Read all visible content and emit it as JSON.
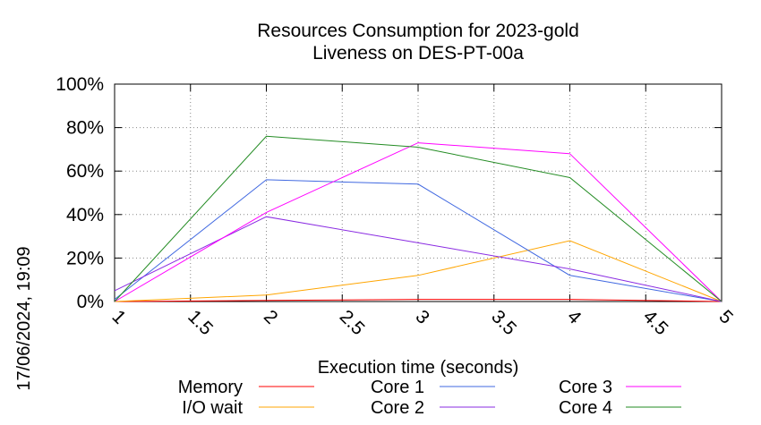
{
  "chart_data": {
    "type": "line",
    "title": [
      "Resources Consumption for 2023-gold",
      "Liveness on DES-PT-00a"
    ],
    "xlabel": "Execution time (seconds)",
    "ylabel": "",
    "side_label": "17/06/2024, 19:09",
    "xlim": [
      1,
      5
    ],
    "ylim": [
      0,
      100
    ],
    "x_ticks": [
      1,
      1.5,
      2,
      2.5,
      3,
      3.5,
      4,
      4.5,
      5
    ],
    "x_tick_labels": [
      "1",
      "1.5",
      "2",
      "2.5",
      "3",
      "3.5",
      "4",
      "4.5",
      "5"
    ],
    "y_ticks": [
      0,
      20,
      40,
      60,
      80,
      100
    ],
    "y_tick_labels": [
      "0%",
      "20%",
      "40%",
      "60%",
      "80%",
      "100%"
    ],
    "grid": true,
    "legend_position": "bottom",
    "series": [
      {
        "name": "Memory",
        "color": "#ff0000",
        "x": [
          1,
          2,
          3,
          4,
          5
        ],
        "y": [
          0,
          0.5,
          1,
          1,
          0
        ]
      },
      {
        "name": "I/O wait",
        "color": "#ffa500",
        "x": [
          1,
          2,
          3,
          4,
          5
        ],
        "y": [
          0,
          3,
          12,
          28,
          0
        ]
      },
      {
        "name": "Core 1",
        "color": "#4169e1",
        "x": [
          1,
          2,
          3,
          4,
          5
        ],
        "y": [
          1,
          56,
          54,
          12,
          0
        ]
      },
      {
        "name": "Core 2",
        "color": "#8a2be2",
        "x": [
          1,
          2,
          3,
          4,
          5
        ],
        "y": [
          5,
          39,
          27,
          15,
          0
        ]
      },
      {
        "name": "Core 3",
        "color": "#ff00ff",
        "x": [
          1,
          2,
          3,
          4,
          5
        ],
        "y": [
          0,
          41,
          73,
          68,
          0
        ]
      },
      {
        "name": "Core 4",
        "color": "#228b22",
        "x": [
          1,
          2,
          3,
          4,
          5
        ],
        "y": [
          0,
          76,
          71,
          57,
          0
        ]
      }
    ]
  }
}
